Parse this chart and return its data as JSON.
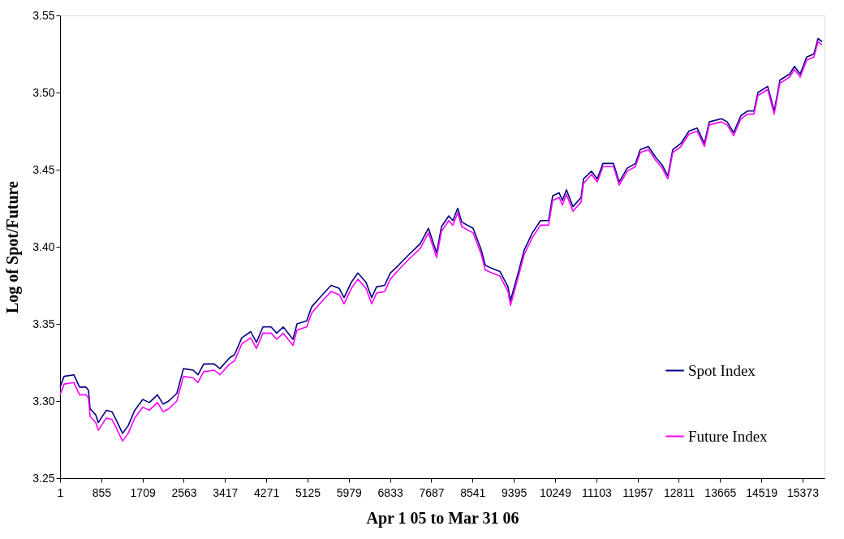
{
  "chart_data": {
    "type": "line",
    "xlabel": "Apr 1 05 to Mar 31 06",
    "ylabel": "Log of Spot/Future",
    "xlim": [
      1,
      15827
    ],
    "xticks": [
      1,
      855,
      1709,
      2563,
      3417,
      4271,
      5125,
      5979,
      6833,
      7687,
      8541,
      9395,
      10249,
      11103,
      11957,
      12811,
      13665,
      14519,
      15373
    ],
    "ylim": [
      3.25,
      3.55
    ],
    "yticks": [
      3.25,
      {
        "value": 3.3,
        "label": "3.30"
      },
      3.35,
      {
        "value": 3.4,
        "label": "3.40"
      },
      3.45,
      {
        "value": 3.5,
        "label": "3.50"
      },
      3.55
    ],
    "grid": false,
    "legend": "right",
    "marker": "none",
    "line_style": "solid",
    "x": [
      1,
      85,
      287,
      404,
      539,
      589,
      623,
      740,
      791,
      959,
      1076,
      1160,
      1295,
      1412,
      1547,
      1715,
      1849,
      2017,
      2135,
      2252,
      2420,
      2555,
      2756,
      2857,
      2975,
      3193,
      3311,
      3512,
      3613,
      3764,
      3949,
      4067,
      4201,
      4369,
      4487,
      4621,
      4823,
      4907,
      5108,
      5209,
      5377,
      5612,
      5780,
      5881,
      6032,
      6167,
      6335,
      6452,
      6553,
      6721,
      6839,
      7007,
      7225,
      7460,
      7628,
      7796,
      7897,
      8048,
      8132,
      8233,
      8317,
      8552,
      8720,
      8804,
      8939,
      9107,
      9275,
      9325,
      9493,
      9611,
      9779,
      9947,
      10115,
      10199,
      10333,
      10400,
      10484,
      10619,
      10787,
      10837,
      11005,
      11123,
      11240,
      11459,
      11576,
      11744,
      11912,
      12013,
      12181,
      12332,
      12466,
      12584,
      12685,
      12853,
      13021,
      13189,
      13340,
      13441,
      13693,
      13811,
      13945,
      14096,
      14231,
      14365,
      14449,
      14651,
      14785,
      14903,
      15104,
      15205,
      15323,
      15457,
      15608,
      15692,
      15776
    ],
    "series": [
      {
        "name": "Spot Index",
        "color": "#000080",
        "values": [
          3.309,
          3.316,
          3.317,
          3.309,
          3.309,
          3.307,
          3.295,
          3.291,
          3.286,
          3.294,
          3.293,
          3.288,
          3.279,
          3.284,
          3.294,
          3.301,
          3.299,
          3.304,
          3.298,
          3.3,
          3.305,
          3.321,
          3.32,
          3.317,
          3.324,
          3.324,
          3.321,
          3.328,
          3.33,
          3.341,
          3.345,
          3.338,
          3.348,
          3.348,
          3.344,
          3.348,
          3.34,
          3.35,
          3.352,
          3.361,
          3.367,
          3.375,
          3.373,
          3.367,
          3.377,
          3.383,
          3.377,
          3.367,
          3.374,
          3.375,
          3.383,
          3.388,
          3.395,
          3.402,
          3.412,
          3.396,
          3.413,
          3.42,
          3.417,
          3.425,
          3.416,
          3.412,
          3.398,
          3.388,
          3.386,
          3.384,
          3.374,
          3.365,
          3.384,
          3.398,
          3.409,
          3.417,
          3.417,
          3.433,
          3.435,
          3.43,
          3.437,
          3.426,
          3.432,
          3.444,
          3.449,
          3.444,
          3.454,
          3.454,
          3.442,
          3.451,
          3.454,
          3.463,
          3.465,
          3.458,
          3.453,
          3.446,
          3.463,
          3.467,
          3.475,
          3.477,
          3.467,
          3.481,
          3.483,
          3.481,
          3.474,
          3.485,
          3.488,
          3.488,
          3.5,
          3.504,
          3.488,
          3.508,
          3.512,
          3.517,
          3.512,
          3.523,
          3.525,
          3.535,
          3.533
        ]
      },
      {
        "name": "Future Index",
        "color": "#ff00ff",
        "values": [
          3.304,
          3.311,
          3.312,
          3.304,
          3.304,
          3.302,
          3.29,
          3.286,
          3.281,
          3.289,
          3.288,
          3.283,
          3.274,
          3.279,
          3.289,
          3.296,
          3.294,
          3.299,
          3.293,
          3.295,
          3.3,
          3.316,
          3.315,
          3.312,
          3.319,
          3.32,
          3.317,
          3.324,
          3.326,
          3.337,
          3.341,
          3.334,
          3.344,
          3.344,
          3.34,
          3.344,
          3.336,
          3.346,
          3.348,
          3.357,
          3.363,
          3.371,
          3.369,
          3.363,
          3.373,
          3.379,
          3.373,
          3.363,
          3.37,
          3.371,
          3.379,
          3.385,
          3.392,
          3.399,
          3.409,
          3.393,
          3.41,
          3.417,
          3.414,
          3.422,
          3.413,
          3.409,
          3.395,
          3.385,
          3.383,
          3.381,
          3.371,
          3.362,
          3.381,
          3.395,
          3.406,
          3.414,
          3.414,
          3.43,
          3.432,
          3.427,
          3.434,
          3.423,
          3.429,
          3.441,
          3.447,
          3.442,
          3.452,
          3.452,
          3.44,
          3.449,
          3.452,
          3.461,
          3.463,
          3.456,
          3.451,
          3.444,
          3.461,
          3.465,
          3.473,
          3.475,
          3.465,
          3.479,
          3.481,
          3.479,
          3.472,
          3.483,
          3.486,
          3.486,
          3.498,
          3.502,
          3.486,
          3.506,
          3.51,
          3.515,
          3.51,
          3.521,
          3.523,
          3.533,
          3.531
        ]
      }
    ]
  }
}
